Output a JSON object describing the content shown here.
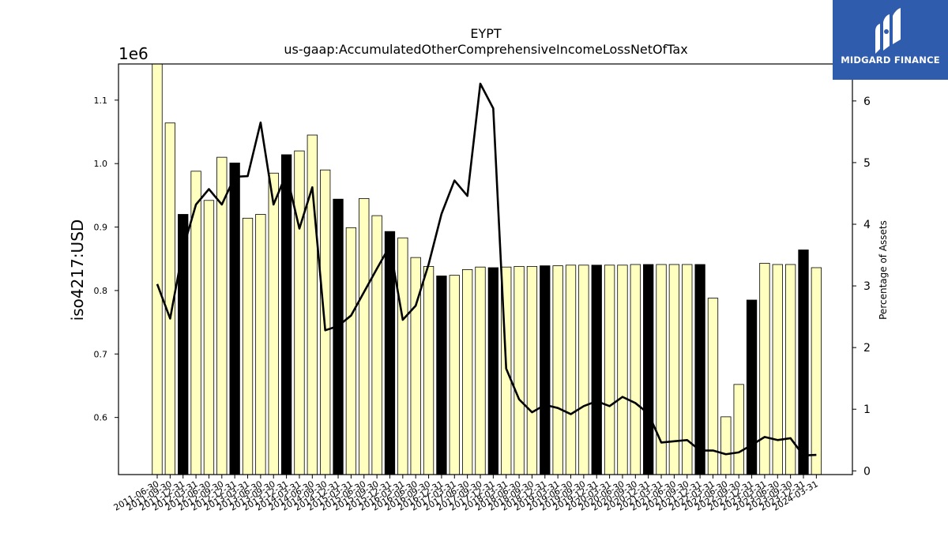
{
  "chart_data": {
    "type": "bar",
    "title": "EYPT",
    "subtitle": "us-gaap:AccumulatedOtherComprehensiveIncomeLossNetOfTax",
    "ylabel": "iso4217:USD",
    "y_offset_label": "1e6",
    "y2label": "Percentage of Assets",
    "ylim": [
      510000,
      1157000
    ],
    "y2lim": [
      -0.06,
      6.6
    ],
    "yticks": [
      0.6,
      0.7,
      0.8,
      0.9,
      1.0,
      1.1
    ],
    "y2ticks": [
      0,
      1,
      2,
      3,
      4,
      5,
      6
    ],
    "categories": [
      "2011-06-30",
      "2011-09-30",
      "2011-12-31",
      "2012-03-31",
      "2012-06-30",
      "2012-09-30",
      "2012-12-31",
      "2013-03-31",
      "2013-06-30",
      "2013-09-30",
      "2013-12-31",
      "2014-03-31",
      "2014-06-30",
      "2014-09-30",
      "2014-12-31",
      "2015-03-31",
      "2015-06-30",
      "2015-09-30",
      "2015-12-31",
      "2016-03-31",
      "2016-06-30",
      "2016-09-30",
      "2016-12-31",
      "2017-03-31",
      "2017-06-30",
      "2017-09-30",
      "2017-12-31",
      "2018-03-31",
      "2018-06-30",
      "2018-09-30",
      "2018-12-31",
      "2019-03-31",
      "2019-06-30",
      "2019-09-30",
      "2019-12-31",
      "2020-03-31",
      "2020-06-30",
      "2020-09-30",
      "2020-12-31",
      "2021-03-31",
      "2021-06-30",
      "2021-09-30",
      "2021-12-31",
      "2022-03-31",
      "2022-06-30",
      "2022-09-30",
      "2022-12-31",
      "2023-03-31",
      "2023-06-30",
      "2023-09-30",
      "2023-12-31",
      "2024-03-31"
    ],
    "series": [
      {
        "type": "bar",
        "values": [
          1157000,
          1064000,
          920000,
          988000,
          942000,
          1010000,
          1001000,
          914000,
          920000,
          985000,
          1014000,
          1020000,
          1045000,
          990000,
          944000,
          899000,
          945000,
          918000,
          893000,
          883000,
          852000,
          838000,
          823000,
          824000,
          833000,
          837000,
          836000,
          837000,
          838000,
          838000,
          839000,
          839000,
          840000,
          840000,
          840000,
          840000,
          840000,
          841000,
          841000,
          841000,
          841000,
          841000,
          841000,
          788000,
          601000,
          652000,
          785000,
          843000,
          841000,
          841000,
          864000,
          836000
        ],
        "highlight_flags": [
          0,
          0,
          1,
          0,
          0,
          0,
          1,
          0,
          0,
          0,
          1,
          0,
          0,
          0,
          1,
          0,
          0,
          0,
          1,
          0,
          0,
          0,
          1,
          0,
          0,
          0,
          1,
          0,
          0,
          0,
          1,
          0,
          0,
          0,
          1,
          0,
          0,
          0,
          1,
          0,
          0,
          0,
          1,
          0,
          0,
          0,
          1,
          0,
          0,
          0,
          1,
          0
        ],
        "colors": {
          "regular": "#ffffc0",
          "highlight": "#000000",
          "edge": "#000000"
        }
      },
      {
        "type": "line",
        "axis": "right",
        "values": [
          3.03,
          2.47,
          3.6,
          4.32,
          4.57,
          4.32,
          4.77,
          4.78,
          5.65,
          4.32,
          4.82,
          3.93,
          4.6,
          2.28,
          2.35,
          2.52,
          2.9,
          3.28,
          3.65,
          2.45,
          2.68,
          3.35,
          4.17,
          4.71,
          4.46,
          6.28,
          5.88,
          1.66,
          1.16,
          0.95,
          1.07,
          1.02,
          0.92,
          1.05,
          1.13,
          1.05,
          1.2,
          1.1,
          0.93,
          0.46,
          0.48,
          0.5,
          0.33,
          0.33,
          0.27,
          0.3,
          0.42,
          0.55,
          0.5,
          0.53,
          0.25,
          0.26
        ],
        "color": "#000000"
      }
    ]
  },
  "logo": {
    "text": "MIDGARD FINANCE",
    "background": "#2f5cad"
  }
}
